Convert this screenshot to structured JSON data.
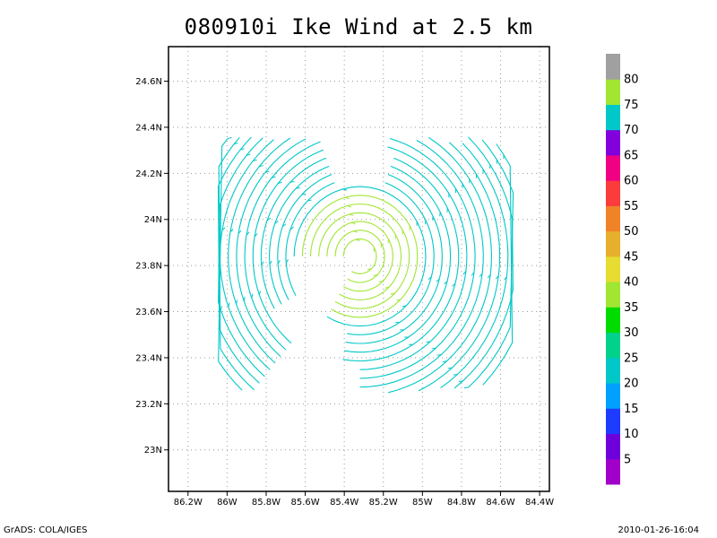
{
  "chart_data": {
    "type": "vector-field",
    "title": "080910i Ike Wind at 2.5 km",
    "x_ticks": [
      "86.2W",
      "86W",
      "85.8W",
      "85.6W",
      "85.4W",
      "85.2W",
      "85W",
      "84.8W",
      "84.6W",
      "84.4W"
    ],
    "y_ticks": [
      "24.6N",
      "24.4N",
      "24.2N",
      "24N",
      "23.8N",
      "23.6N",
      "23.4N",
      "23.2N",
      "23N"
    ],
    "xlim": [
      -86.3,
      -84.35
    ],
    "ylim": [
      22.82,
      24.75
    ],
    "grid": true,
    "center": {
      "lon": -85.32,
      "lat": 23.84
    },
    "colorbar": {
      "labels": [
        "5",
        "10",
        "15",
        "20",
        "25",
        "30",
        "35",
        "40",
        "45",
        "50",
        "55",
        "60",
        "65",
        "70",
        "75",
        "80"
      ],
      "colors": [
        "#a000c8",
        "#6e00dc",
        "#1e3cff",
        "#00a0ff",
        "#00c8c8",
        "#00d28c",
        "#00dc00",
        "#a0e632",
        "#e6dc32",
        "#e6af2d",
        "#f08228",
        "#fa3c3c",
        "#f00082",
        "#8200dc",
        "#00c8c8",
        "#a0e632",
        "#a0a0a0"
      ]
    }
  },
  "footer": {
    "left": "GrADS: COLA/IGES",
    "right": "2010-01-26-16:04"
  }
}
